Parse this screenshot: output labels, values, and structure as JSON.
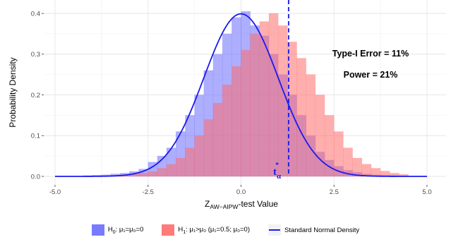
{
  "chart_data": {
    "type": "histogram",
    "xlabel": "Z",
    "xlabel_subscript": "AW−AIPW",
    "xlabel_suffix": "-test Value",
    "ylabel": "Probability Density",
    "xlim": [
      -5,
      5
    ],
    "ylim": [
      0,
      0.42
    ],
    "x_ticks": [
      -5.0,
      -2.5,
      0.0,
      2.5,
      5.0
    ],
    "x_tick_labels": [
      "-5.0",
      "-2.5",
      "0.0",
      "2.5",
      "5.0"
    ],
    "y_ticks": [
      0.0,
      0.1,
      0.2,
      0.3,
      0.4
    ],
    "y_tick_labels": [
      "0.0",
      "0.1",
      "0.2",
      "0.3",
      "0.4"
    ],
    "grid": true,
    "bins": {
      "edges": [
        -4.5,
        -4.25,
        -4.0,
        -3.75,
        -3.5,
        -3.25,
        -3.0,
        -2.75,
        -2.5,
        -2.25,
        -2.0,
        -1.75,
        -1.5,
        -1.25,
        -1.0,
        -0.75,
        -0.5,
        -0.25,
        0.0,
        0.25,
        0.5,
        0.75,
        1.0,
        1.25,
        1.5,
        1.75,
        2.0,
        2.25,
        2.5,
        2.75,
        3.0,
        3.25,
        3.5,
        3.75,
        4.0,
        4.25,
        4.5
      ]
    },
    "series": [
      {
        "name_prefix": "H",
        "name_sub": "0",
        "name_rest": ": μ₁=μ₀=0",
        "color": "#6b6bff",
        "values": [
          0.0,
          0.002,
          0.003,
          0.004,
          0.006,
          0.008,
          0.012,
          0.018,
          0.035,
          0.05,
          0.07,
          0.11,
          0.15,
          0.2,
          0.26,
          0.3,
          0.35,
          0.39,
          0.405,
          0.37,
          0.345,
          0.3,
          0.25,
          0.2,
          0.15,
          0.1,
          0.06,
          0.04,
          0.025,
          0.015,
          0.01,
          0.006,
          0.004,
          0.003,
          0.002,
          0.001
        ]
      },
      {
        "name_prefix": "H",
        "name_sub": "1",
        "name_rest": ": μ₁>μ₀ (μ₁=0.5; μ₀=0)",
        "color": "#ff6b6b",
        "values": [
          0.0,
          0.0,
          0.001,
          0.002,
          0.003,
          0.004,
          0.006,
          0.008,
          0.012,
          0.02,
          0.03,
          0.045,
          0.07,
          0.1,
          0.14,
          0.18,
          0.225,
          0.27,
          0.31,
          0.35,
          0.38,
          0.4,
          0.37,
          0.33,
          0.29,
          0.25,
          0.2,
          0.15,
          0.11,
          0.07,
          0.045,
          0.03,
          0.02,
          0.013,
          0.008,
          0.005
        ]
      }
    ],
    "curve": {
      "name": "Standard Normal Density",
      "color": "#1a1aee",
      "mean": 0,
      "sd": 1
    },
    "critical_value": 1.28,
    "critical_label": "t",
    "critical_sub": "α",
    "critical_sup": "*",
    "annotations": [
      "Type-I Error = 11%",
      "Power = 21%"
    ],
    "legend_position": "bottom"
  }
}
